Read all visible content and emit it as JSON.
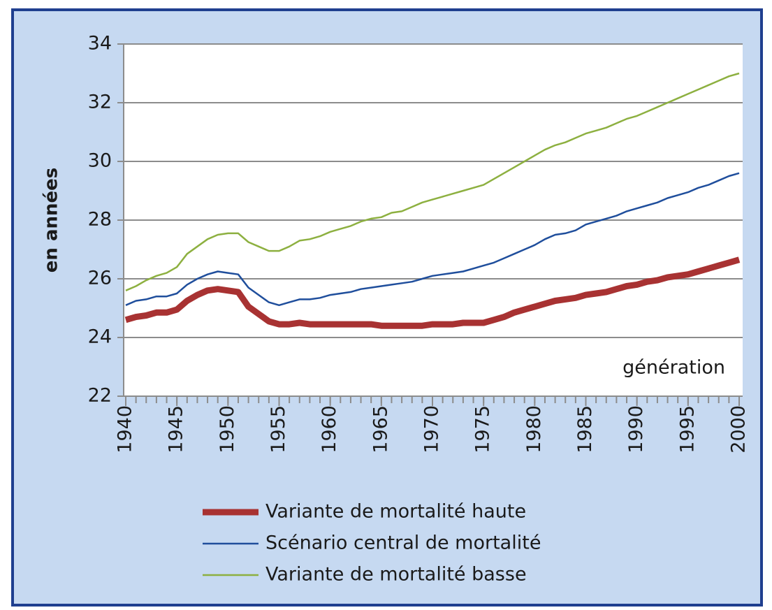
{
  "chart_data": {
    "type": "line",
    "y_label": "en années",
    "annotation": "génération",
    "x": [
      1940,
      1941,
      1942,
      1943,
      1944,
      1945,
      1946,
      1947,
      1948,
      1949,
      1950,
      1951,
      1952,
      1953,
      1954,
      1955,
      1956,
      1957,
      1958,
      1959,
      1960,
      1961,
      1962,
      1963,
      1964,
      1965,
      1966,
      1967,
      1968,
      1969,
      1970,
      1971,
      1972,
      1973,
      1974,
      1975,
      1976,
      1977,
      1978,
      1979,
      1980,
      1981,
      1982,
      1983,
      1984,
      1985,
      1986,
      1987,
      1988,
      1989,
      1990,
      1991,
      1992,
      1993,
      1994,
      1995,
      1996,
      1997,
      1998,
      1999,
      2000
    ],
    "xlim": [
      1940,
      2000
    ],
    "xticks": [
      1940,
      1945,
      1950,
      1955,
      1960,
      1965,
      1970,
      1975,
      1980,
      1985,
      1990,
      1995,
      2000
    ],
    "ylim": [
      22,
      34
    ],
    "yticks": [
      22,
      24,
      26,
      28,
      30,
      32,
      34
    ],
    "grid": true,
    "series": [
      {
        "name": "Variante de mortalité haute",
        "color": "#a83232",
        "width": 9,
        "values": [
          24.6,
          24.7,
          24.75,
          24.85,
          24.85,
          24.95,
          25.25,
          25.45,
          25.6,
          25.65,
          25.6,
          25.55,
          25.05,
          24.8,
          24.55,
          24.45,
          24.45,
          24.5,
          24.45,
          24.45,
          24.45,
          24.45,
          24.45,
          24.45,
          24.45,
          24.4,
          24.4,
          24.4,
          24.4,
          24.4,
          24.45,
          24.45,
          24.45,
          24.5,
          24.5,
          24.5,
          24.6,
          24.7,
          24.85,
          24.95,
          25.05,
          25.15,
          25.25,
          25.3,
          25.35,
          25.45,
          25.5,
          25.55,
          25.65,
          25.75,
          25.8,
          25.9,
          25.95,
          26.05,
          26.1,
          26.15,
          26.25,
          26.35,
          26.45,
          26.55,
          26.65
        ]
      },
      {
        "name": "Scénario central de mortalité",
        "color": "#1f4e9c",
        "width": 2.5,
        "values": [
          25.1,
          25.25,
          25.3,
          25.4,
          25.4,
          25.5,
          25.8,
          26.0,
          26.15,
          26.25,
          26.2,
          26.15,
          25.7,
          25.45,
          25.2,
          25.1,
          25.2,
          25.3,
          25.3,
          25.35,
          25.45,
          25.5,
          25.55,
          25.65,
          25.7,
          25.75,
          25.8,
          25.85,
          25.9,
          26.0,
          26.1,
          26.15,
          26.2,
          26.25,
          26.35,
          26.45,
          26.55,
          26.7,
          26.85,
          27.0,
          27.15,
          27.35,
          27.5,
          27.55,
          27.65,
          27.85,
          27.95,
          28.05,
          28.15,
          28.3,
          28.4,
          28.5,
          28.6,
          28.75,
          28.85,
          28.95,
          29.1,
          29.2,
          29.35,
          29.5,
          29.6
        ]
      },
      {
        "name": "Variante de mortalité basse",
        "color": "#8db040",
        "width": 2.5,
        "values": [
          25.6,
          25.75,
          25.95,
          26.1,
          26.2,
          26.4,
          26.85,
          27.1,
          27.35,
          27.5,
          27.55,
          27.55,
          27.25,
          27.1,
          26.95,
          26.95,
          27.1,
          27.3,
          27.35,
          27.45,
          27.6,
          27.7,
          27.8,
          27.95,
          28.05,
          28.1,
          28.25,
          28.3,
          28.45,
          28.6,
          28.7,
          28.8,
          28.9,
          29.0,
          29.1,
          29.2,
          29.4,
          29.6,
          29.8,
          30.0,
          30.2,
          30.4,
          30.55,
          30.65,
          30.8,
          30.95,
          31.05,
          31.15,
          31.3,
          31.45,
          31.55,
          31.7,
          31.85,
          32.0,
          32.15,
          32.3,
          32.45,
          32.6,
          32.75,
          32.9,
          33.0
        ]
      }
    ]
  }
}
